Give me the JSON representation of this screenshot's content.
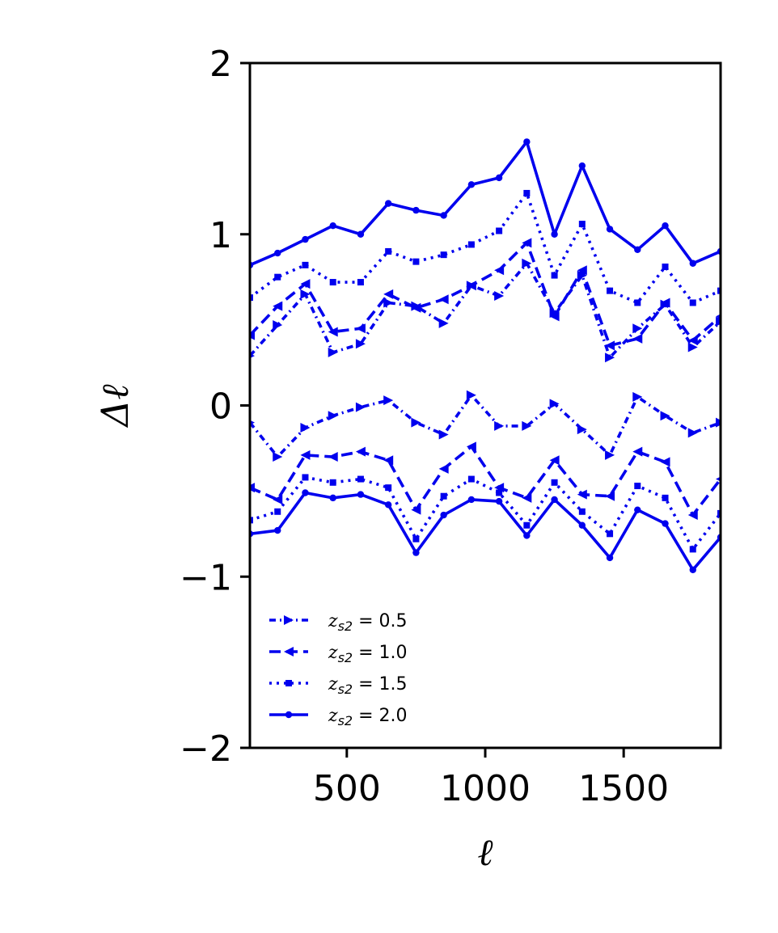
{
  "chart_data": {
    "type": "line",
    "xlabel": "ℓ",
    "ylabel": "Δℓ",
    "xlim": [
      150,
      1850
    ],
    "ylim": [
      -2,
      2
    ],
    "xticks": [
      500,
      1000,
      1500
    ],
    "xtick_labels": [
      "500",
      "1000",
      "1500"
    ],
    "yticks": [
      -2,
      -1,
      0,
      1,
      2
    ],
    "ytick_labels": [
      "−2",
      "−1",
      "0",
      "1",
      "2"
    ],
    "grid": false,
    "legend_position": "lower-left",
    "x": [
      150,
      250,
      350,
      450,
      550,
      650,
      750,
      850,
      950,
      1050,
      1150,
      1250,
      1350,
      1450,
      1550,
      1650,
      1750,
      1850
    ],
    "series": [
      {
        "name": "z_{s2} = 0.5",
        "legend_label": "zs2 = 0.5",
        "group": "upper",
        "dash": "8,5,2,5",
        "marker": "triangle-right",
        "values": [
          0.29,
          0.47,
          0.65,
          0.31,
          0.36,
          0.6,
          0.58,
          0.48,
          0.7,
          0.64,
          0.83,
          0.54,
          0.76,
          0.28,
          0.45,
          0.59,
          0.34,
          0.49
        ]
      },
      {
        "name": "z_{s2} = 1.0",
        "legend_label": "zs2 = 1.0",
        "group": "upper",
        "dash": "14,7",
        "marker": "triangle-left",
        "values": [
          0.41,
          0.58,
          0.71,
          0.43,
          0.45,
          0.65,
          0.57,
          0.62,
          0.7,
          0.79,
          0.95,
          0.52,
          0.79,
          0.35,
          0.39,
          0.6,
          0.38,
          0.52
        ]
      },
      {
        "name": "z_{s2} = 1.5",
        "legend_label": "zs2 = 1.5",
        "group": "upper",
        "dash": "3,6",
        "marker": "square",
        "values": [
          0.63,
          0.75,
          0.82,
          0.72,
          0.72,
          0.9,
          0.84,
          0.88,
          0.94,
          1.02,
          1.24,
          0.76,
          1.06,
          0.67,
          0.6,
          0.81,
          0.6,
          0.67
        ]
      },
      {
        "name": "z_{s2} = 2.0",
        "legend_label": "zs2 = 2.0",
        "group": "upper",
        "dash": "",
        "marker": "circle",
        "values": [
          0.82,
          0.89,
          0.97,
          1.05,
          1.0,
          1.18,
          1.14,
          1.11,
          1.29,
          1.33,
          1.54,
          1.0,
          1.4,
          1.03,
          0.91,
          1.05,
          0.83,
          0.9
        ]
      },
      {
        "name": "z_{s2} = 0.5",
        "legend_label": "zs2 = 0.5",
        "group": "lower",
        "dash": "8,5,2,5",
        "marker": "triangle-right",
        "values": [
          -0.1,
          -0.3,
          -0.13,
          -0.06,
          -0.01,
          0.03,
          -0.1,
          -0.17,
          0.06,
          -0.12,
          -0.12,
          0.01,
          -0.14,
          -0.29,
          0.05,
          -0.06,
          -0.16,
          -0.1
        ]
      },
      {
        "name": "z_{s2} = 1.0",
        "legend_label": "zs2 = 1.0",
        "group": "lower",
        "dash": "14,7",
        "marker": "triangle-left",
        "values": [
          -0.48,
          -0.55,
          -0.29,
          -0.3,
          -0.27,
          -0.32,
          -0.61,
          -0.37,
          -0.24,
          -0.48,
          -0.54,
          -0.32,
          -0.52,
          -0.53,
          -0.27,
          -0.33,
          -0.64,
          -0.43
        ]
      },
      {
        "name": "z_{s2} = 1.5",
        "legend_label": "zs2 = 1.5",
        "group": "lower",
        "dash": "3,6",
        "marker": "square",
        "values": [
          -0.67,
          -0.62,
          -0.42,
          -0.45,
          -0.43,
          -0.48,
          -0.78,
          -0.53,
          -0.43,
          -0.51,
          -0.7,
          -0.45,
          -0.62,
          -0.75,
          -0.47,
          -0.54,
          -0.84,
          -0.63
        ]
      },
      {
        "name": "z_{s2} = 2.0",
        "legend_label": "zs2 = 2.0",
        "group": "lower",
        "dash": "",
        "marker": "circle",
        "values": [
          -0.75,
          -0.73,
          -0.51,
          -0.54,
          -0.52,
          -0.58,
          -0.86,
          -0.64,
          -0.55,
          -0.56,
          -0.76,
          -0.55,
          -0.7,
          -0.89,
          -0.61,
          -0.69,
          -0.96,
          -0.77
        ]
      }
    ],
    "legend": [
      {
        "label_main": "z",
        "label_sub": "s2",
        "label_value": " = 0.5",
        "dash": "8,5,2,5",
        "marker": "triangle-right"
      },
      {
        "label_main": "z",
        "label_sub": "s2",
        "label_value": " = 1.0",
        "dash": "14,7",
        "marker": "triangle-left"
      },
      {
        "label_main": "z",
        "label_sub": "s2",
        "label_value": " = 1.5",
        "dash": "3,6",
        "marker": "square"
      },
      {
        "label_main": "z",
        "label_sub": "s2",
        "label_value": " = 2.0",
        "dash": "",
        "marker": "circle"
      }
    ],
    "colors": {
      "series": "#0000ee",
      "axes": "#000000"
    }
  }
}
